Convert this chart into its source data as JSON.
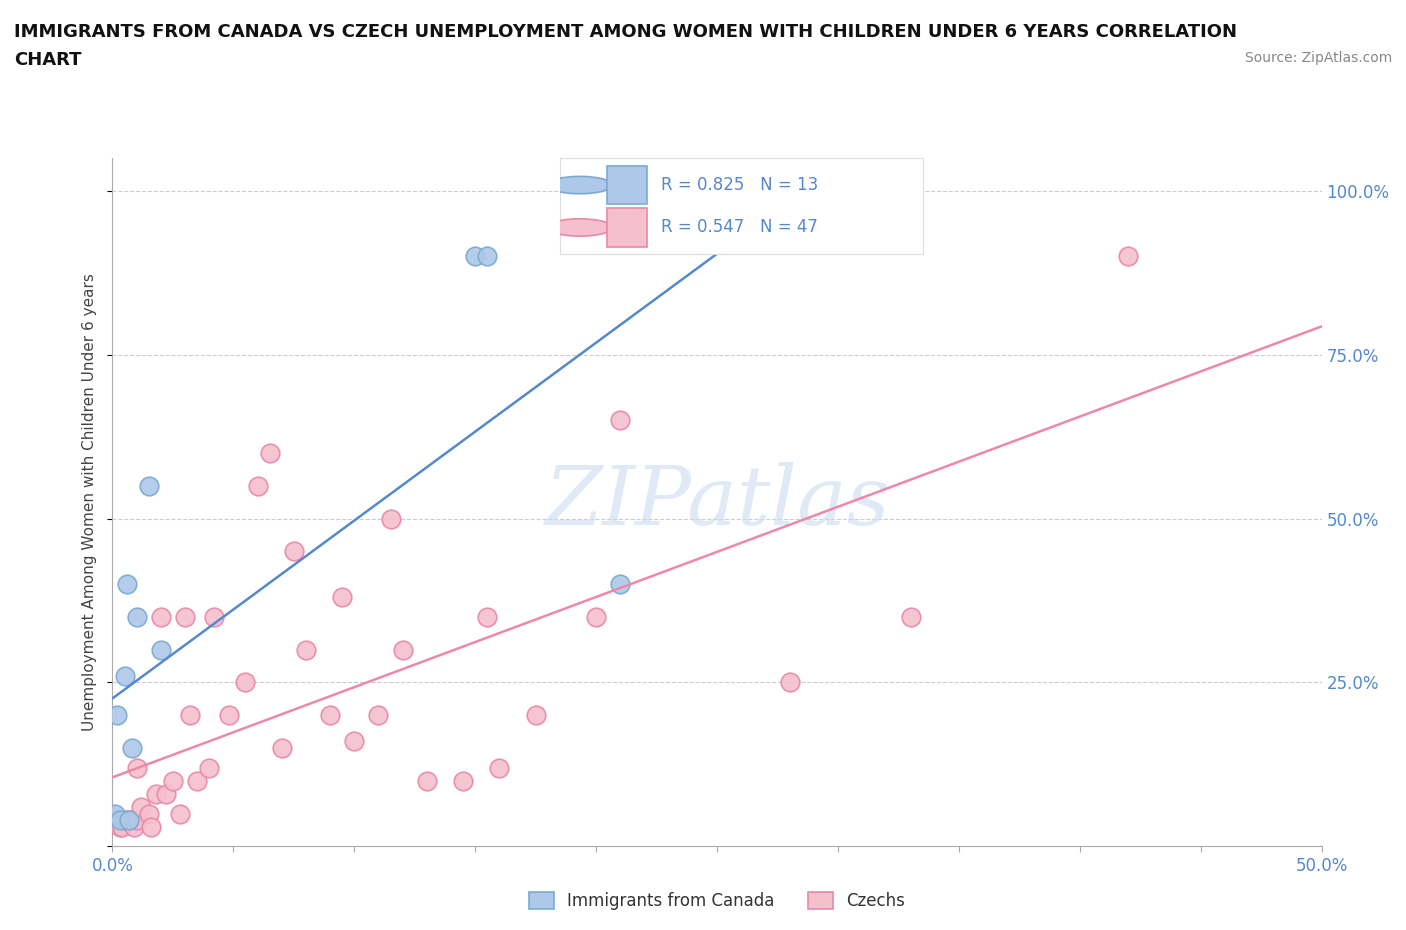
{
  "title_line1": "IMMIGRANTS FROM CANADA VS CZECH UNEMPLOYMENT AMONG WOMEN WITH CHILDREN UNDER 6 YEARS CORRELATION",
  "title_line2": "CHART",
  "source_text": "Source: ZipAtlas.com",
  "ylabel": "Unemployment Among Women with Children Under 6 years",
  "xlim": [
    0.0,
    0.5
  ],
  "ylim": [
    0.0,
    1.05
  ],
  "background_color": "#ffffff",
  "watermark": "ZIPatlas",
  "canada_color": "#adc8e8",
  "canada_edge_color": "#7aaad0",
  "czechs_color": "#f5bfce",
  "czechs_edge_color": "#e888a8",
  "canada_R": 0.825,
  "canada_N": 13,
  "czechs_R": 0.547,
  "czechs_N": 47,
  "canada_line_color": "#5588cc",
  "czechs_line_color": "#ee88aa",
  "canada_x": [
    0.001,
    0.002,
    0.003,
    0.005,
    0.006,
    0.007,
    0.008,
    0.01,
    0.015,
    0.02,
    0.15,
    0.155,
    0.21
  ],
  "canada_y": [
    0.05,
    0.2,
    0.04,
    0.26,
    0.4,
    0.04,
    0.15,
    0.35,
    0.55,
    0.3,
    0.9,
    0.9,
    0.4
  ],
  "czechs_x": [
    0.001,
    0.002,
    0.003,
    0.004,
    0.005,
    0.006,
    0.007,
    0.008,
    0.009,
    0.01,
    0.01,
    0.012,
    0.015,
    0.016,
    0.018,
    0.02,
    0.022,
    0.025,
    0.028,
    0.03,
    0.032,
    0.035,
    0.04,
    0.042,
    0.048,
    0.055,
    0.06,
    0.065,
    0.07,
    0.075,
    0.08,
    0.09,
    0.095,
    0.1,
    0.11,
    0.115,
    0.12,
    0.13,
    0.145,
    0.155,
    0.16,
    0.175,
    0.2,
    0.21,
    0.28,
    0.33,
    0.42
  ],
  "czechs_y": [
    0.04,
    0.04,
    0.03,
    0.03,
    0.04,
    0.04,
    0.04,
    0.04,
    0.03,
    0.04,
    0.12,
    0.06,
    0.05,
    0.03,
    0.08,
    0.35,
    0.08,
    0.1,
    0.05,
    0.35,
    0.2,
    0.1,
    0.12,
    0.35,
    0.2,
    0.25,
    0.55,
    0.6,
    0.15,
    0.45,
    0.3,
    0.2,
    0.38,
    0.16,
    0.2,
    0.5,
    0.3,
    0.1,
    0.1,
    0.35,
    0.12,
    0.2,
    0.35,
    0.65,
    0.25,
    0.35,
    0.9
  ],
  "marker_size": 180,
  "grid_color": "#cccccc",
  "tick_color": "#5588cc",
  "label_color": "#5588cc"
}
